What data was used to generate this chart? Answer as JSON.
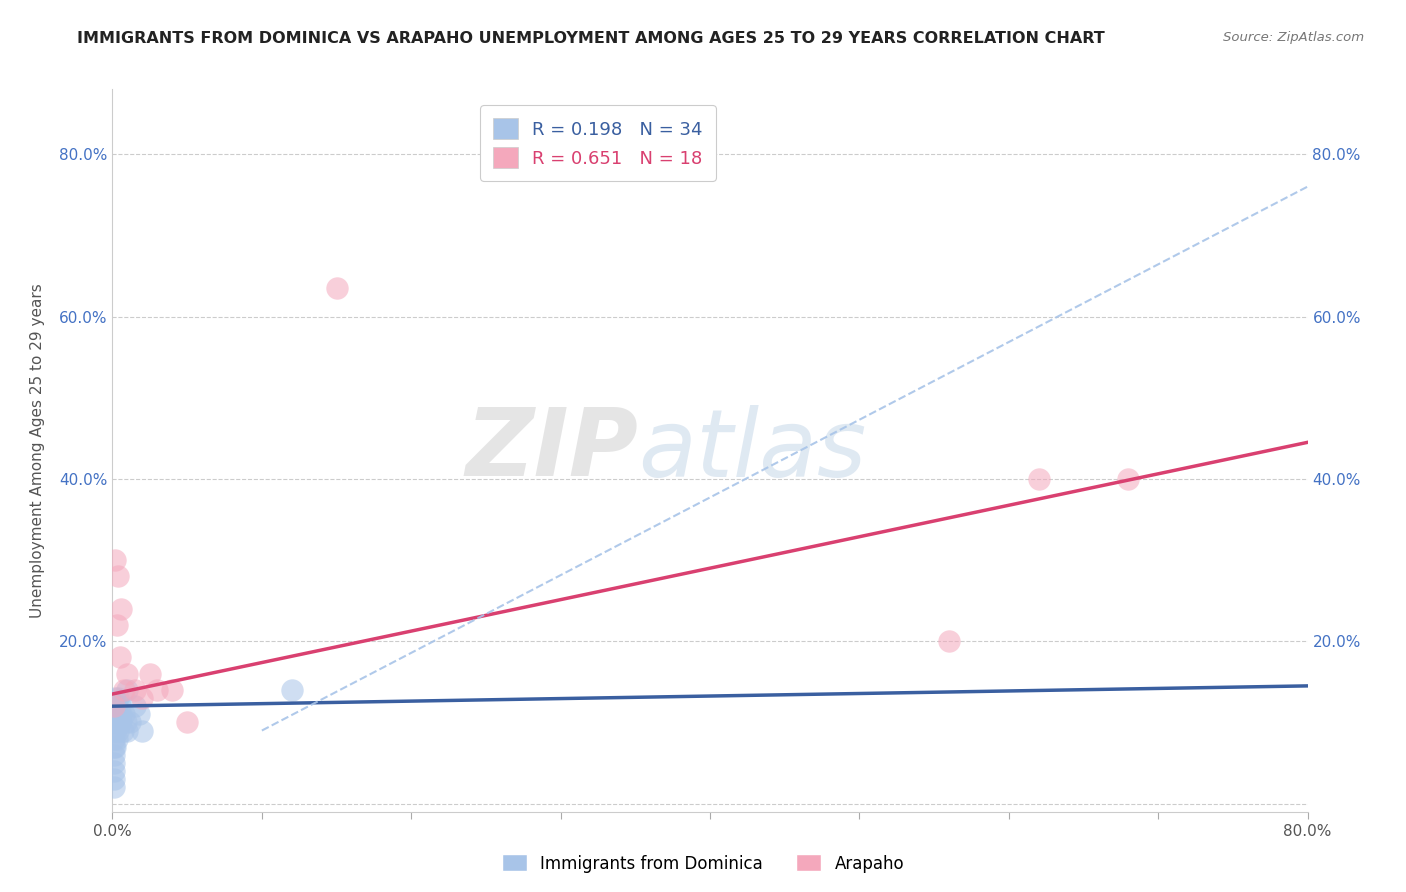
{
  "title": "IMMIGRANTS FROM DOMINICA VS ARAPAHO UNEMPLOYMENT AMONG AGES 25 TO 29 YEARS CORRELATION CHART",
  "source": "Source: ZipAtlas.com",
  "ylabel": "Unemployment Among Ages 25 to 29 years",
  "xlim": [
    0,
    0.8
  ],
  "ylim": [
    -0.01,
    0.88
  ],
  "xticks": [
    0.0,
    0.1,
    0.2,
    0.3,
    0.4,
    0.5,
    0.6,
    0.7,
    0.8
  ],
  "yticks": [
    0.0,
    0.2,
    0.4,
    0.6,
    0.8
  ],
  "legend_r1": "R = 0.198",
  "legend_n1": "N = 34",
  "legend_r2": "R = 0.651",
  "legend_n2": "N = 18",
  "legend_label1": "Immigrants from Dominica",
  "legend_label2": "Arapaho",
  "blue_color": "#A8C4E8",
  "pink_color": "#F4A8BC",
  "blue_line_color": "#3A5FA0",
  "pink_line_color": "#D94070",
  "dashed_line_color": "#A8C4E8",
  "watermark_zip": "ZIP",
  "watermark_atlas": "atlas",
  "blue_dots_x": [
    0.001,
    0.001,
    0.001,
    0.001,
    0.001,
    0.001,
    0.001,
    0.001,
    0.002,
    0.002,
    0.002,
    0.002,
    0.002,
    0.003,
    0.003,
    0.003,
    0.003,
    0.004,
    0.004,
    0.004,
    0.005,
    0.005,
    0.006,
    0.006,
    0.007,
    0.008,
    0.009,
    0.01,
    0.01,
    0.012,
    0.015,
    0.018,
    0.02,
    0.12
  ],
  "blue_dots_y": [
    0.02,
    0.03,
    0.04,
    0.05,
    0.06,
    0.07,
    0.08,
    0.1,
    0.07,
    0.09,
    0.1,
    0.11,
    0.13,
    0.08,
    0.1,
    0.11,
    0.12,
    0.09,
    0.11,
    0.13,
    0.1,
    0.12,
    0.1,
    0.11,
    0.09,
    0.11,
    0.1,
    0.09,
    0.14,
    0.1,
    0.12,
    0.11,
    0.09,
    0.14
  ],
  "pink_dots_x": [
    0.001,
    0.002,
    0.003,
    0.004,
    0.005,
    0.006,
    0.008,
    0.01,
    0.015,
    0.02,
    0.025,
    0.03,
    0.04,
    0.05,
    0.15,
    0.56,
    0.62,
    0.68
  ],
  "pink_dots_y": [
    0.12,
    0.3,
    0.22,
    0.28,
    0.18,
    0.24,
    0.14,
    0.16,
    0.14,
    0.13,
    0.16,
    0.14,
    0.14,
    0.1,
    0.635,
    0.2,
    0.4,
    0.4
  ],
  "blue_trend_x": [
    0.0,
    0.8
  ],
  "blue_trend_y": [
    0.12,
    0.145
  ],
  "pink_trend_x": [
    0.0,
    0.8
  ],
  "pink_trend_y": [
    0.135,
    0.445
  ],
  "dashed_trend_x": [
    0.1,
    0.8
  ],
  "dashed_trend_y": [
    0.09,
    0.76
  ]
}
